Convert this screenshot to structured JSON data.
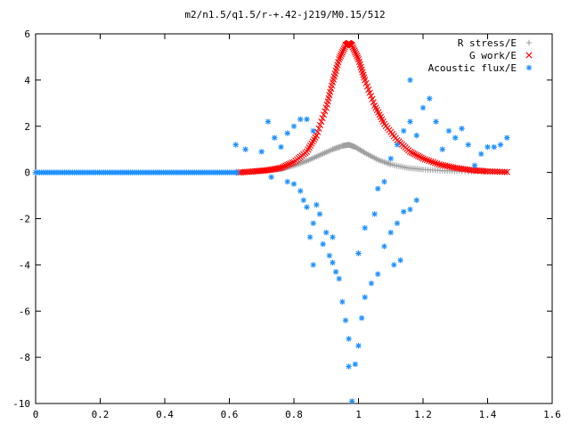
{
  "chart_data": {
    "type": "scatter",
    "title": "m2/n1.5/q1.5/r-+.42-j219/M0.15/512",
    "xlabel": "",
    "ylabel": "",
    "xlim": [
      0,
      1.6
    ],
    "ylim": [
      -10,
      6
    ],
    "x_ticks": [
      0,
      0.2,
      0.4,
      0.6,
      0.8,
      1,
      1.2,
      1.4,
      1.6
    ],
    "x_tick_labels": [
      "0",
      "0.2",
      "0.4",
      "0.6",
      "0.8",
      "1",
      "1.2",
      "1.4",
      "1.6"
    ],
    "y_ticks": [
      -10,
      -8,
      -6,
      -4,
      -2,
      0,
      2,
      4,
      6
    ],
    "y_tick_labels": [
      "-10",
      "-8",
      "-6",
      "-4",
      "-2",
      "0",
      "2",
      "4",
      "6"
    ],
    "grid": false,
    "legend_position": "top-right",
    "series": [
      {
        "name": "R stress/E",
        "marker": "+",
        "color": "#a0a0a0",
        "x_range": [
          0.63,
          1.46
        ],
        "points": [
          [
            0.63,
            0.0
          ],
          [
            0.68,
            0.05
          ],
          [
            0.72,
            0.1
          ],
          [
            0.76,
            0.15
          ],
          [
            0.8,
            0.3
          ],
          [
            0.84,
            0.5
          ],
          [
            0.88,
            0.75
          ],
          [
            0.92,
            1.0
          ],
          [
            0.95,
            1.15
          ],
          [
            0.97,
            1.2
          ],
          [
            0.99,
            1.1
          ],
          [
            1.02,
            0.85
          ],
          [
            1.06,
            0.55
          ],
          [
            1.1,
            0.35
          ],
          [
            1.15,
            0.2
          ],
          [
            1.2,
            0.13
          ],
          [
            1.26,
            0.08
          ],
          [
            1.32,
            0.05
          ],
          [
            1.4,
            0.03
          ],
          [
            1.46,
            0.02
          ]
        ]
      },
      {
        "name": "G work/E",
        "marker": "x",
        "color": "#ff0000",
        "x_range": [
          0.63,
          1.46
        ],
        "points": [
          [
            0.63,
            0.0
          ],
          [
            0.68,
            0.05
          ],
          [
            0.72,
            0.1
          ],
          [
            0.76,
            0.2
          ],
          [
            0.8,
            0.45
          ],
          [
            0.84,
            0.9
          ],
          [
            0.87,
            1.6
          ],
          [
            0.9,
            2.8
          ],
          [
            0.92,
            3.9
          ],
          [
            0.94,
            4.9
          ],
          [
            0.96,
            5.5
          ],
          [
            0.97,
            5.6
          ],
          [
            0.98,
            5.5
          ],
          [
            1.0,
            4.9
          ],
          [
            1.02,
            4.0
          ],
          [
            1.05,
            2.9
          ],
          [
            1.08,
            2.1
          ],
          [
            1.12,
            1.4
          ],
          [
            1.16,
            0.9
          ],
          [
            1.2,
            0.6
          ],
          [
            1.25,
            0.35
          ],
          [
            1.3,
            0.2
          ],
          [
            1.35,
            0.1
          ],
          [
            1.4,
            0.05
          ],
          [
            1.46,
            0.02
          ]
        ]
      },
      {
        "name": "Acoustic flux/E",
        "marker": "*",
        "color": "#1e90ff",
        "flat_segment": {
          "x_range": [
            0.0,
            0.63
          ],
          "y": 0.0
        },
        "points": [
          [
            0.62,
            1.2
          ],
          [
            0.65,
            1.0
          ],
          [
            0.7,
            0.9
          ],
          [
            0.72,
            2.2
          ],
          [
            0.74,
            1.5
          ],
          [
            0.76,
            1.1
          ],
          [
            0.78,
            1.7
          ],
          [
            0.8,
            2.0
          ],
          [
            0.82,
            2.3
          ],
          [
            0.84,
            2.3
          ],
          [
            0.86,
            1.8
          ],
          [
            0.73,
            -0.2
          ],
          [
            0.78,
            -0.4
          ],
          [
            0.8,
            -0.5
          ],
          [
            0.82,
            -0.8
          ],
          [
            0.83,
            -1.2
          ],
          [
            0.84,
            -1.5
          ],
          [
            0.85,
            -2.8
          ],
          [
            0.86,
            -2.2
          ],
          [
            0.87,
            -1.4
          ],
          [
            0.88,
            -1.8
          ],
          [
            0.89,
            -3.1
          ],
          [
            0.9,
            -2.6
          ],
          [
            0.91,
            -3.6
          ],
          [
            0.92,
            -3.9
          ],
          [
            0.93,
            -4.3
          ],
          [
            0.94,
            -4.6
          ],
          [
            0.95,
            -5.6
          ],
          [
            0.96,
            -6.4
          ],
          [
            0.97,
            -7.2
          ],
          [
            0.97,
            -8.4
          ],
          [
            0.98,
            -9.9
          ],
          [
            0.99,
            -8.3
          ],
          [
            1.0,
            -7.5
          ],
          [
            1.01,
            -6.3
          ],
          [
            1.02,
            -5.4
          ],
          [
            1.04,
            -4.8
          ],
          [
            1.06,
            -4.4
          ],
          [
            1.08,
            -3.2
          ],
          [
            1.1,
            -2.6
          ],
          [
            1.12,
            -2.2
          ],
          [
            1.14,
            -1.7
          ],
          [
            1.16,
            -1.6
          ],
          [
            1.18,
            -1.2
          ],
          [
            0.86,
            -4.0
          ],
          [
            0.92,
            -2.8
          ],
          [
            1.0,
            -3.5
          ],
          [
            1.02,
            -2.4
          ],
          [
            1.05,
            -1.8
          ],
          [
            1.11,
            -4.0
          ],
          [
            1.13,
            -3.8
          ],
          [
            1.06,
            -0.7
          ],
          [
            1.08,
            -0.4
          ],
          [
            1.1,
            0.6
          ],
          [
            1.12,
            1.2
          ],
          [
            1.14,
            1.8
          ],
          [
            1.16,
            2.2
          ],
          [
            1.18,
            1.6
          ],
          [
            1.2,
            2.8
          ],
          [
            1.22,
            3.2
          ],
          [
            1.24,
            2.2
          ],
          [
            1.26,
            1.0
          ],
          [
            1.28,
            1.8
          ],
          [
            1.3,
            1.5
          ],
          [
            1.32,
            1.9
          ],
          [
            1.34,
            1.2
          ],
          [
            1.36,
            0.3
          ],
          [
            1.38,
            0.8
          ],
          [
            1.4,
            1.1
          ],
          [
            1.42,
            1.1
          ],
          [
            1.44,
            1.2
          ],
          [
            1.46,
            1.5
          ],
          [
            1.16,
            4.0
          ]
        ]
      }
    ]
  }
}
